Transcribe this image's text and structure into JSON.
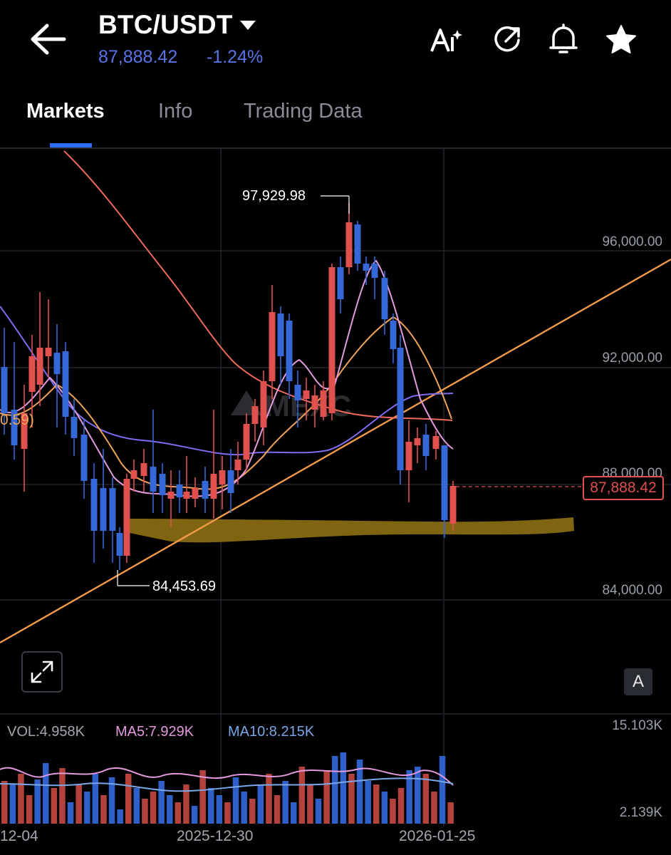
{
  "header": {
    "pair": "BTC/USDT",
    "price": "87,888.42",
    "change": "-1.24%",
    "accent_color": "#5b73e8",
    "icons": [
      "back-arrow-icon",
      "ai-sparkle-icon",
      "share-rotate-icon",
      "bell-icon",
      "star-icon"
    ]
  },
  "tabs": [
    {
      "label": "Markets",
      "active": true
    },
    {
      "label": "Info",
      "active": false
    },
    {
      "label": "Trading Data",
      "active": false
    }
  ],
  "chart": {
    "price_axis": [
      "96,000.00",
      "92,000.00",
      "88,000.00",
      "84,000.00"
    ],
    "current_price_tag": "87,888.42",
    "high_label": "97,929.98",
    "low_label": "84,453.69",
    "partial_ma_label": "0.59)",
    "watermark": "MEXC",
    "a_button": "A",
    "colors": {
      "up": "#e0514e",
      "down": "#3567d6",
      "ma_orange": "#f0a35a",
      "ma_pink": "#e59ae0",
      "ma_purple": "#7c6cf0",
      "ma_red": "#ef6a5a",
      "trendline": "#f09a4a",
      "highlight": "#8a6d12"
    }
  },
  "volume": {
    "vol": "VOL:4.958K",
    "ma5": "MA5:7.929K",
    "ma10": "MA10:8.215K",
    "axis_top": "15.103K",
    "axis_bottom": "2.139K"
  },
  "dates": [
    "12-04",
    "2025-12-30",
    "2026-01-25"
  ]
}
